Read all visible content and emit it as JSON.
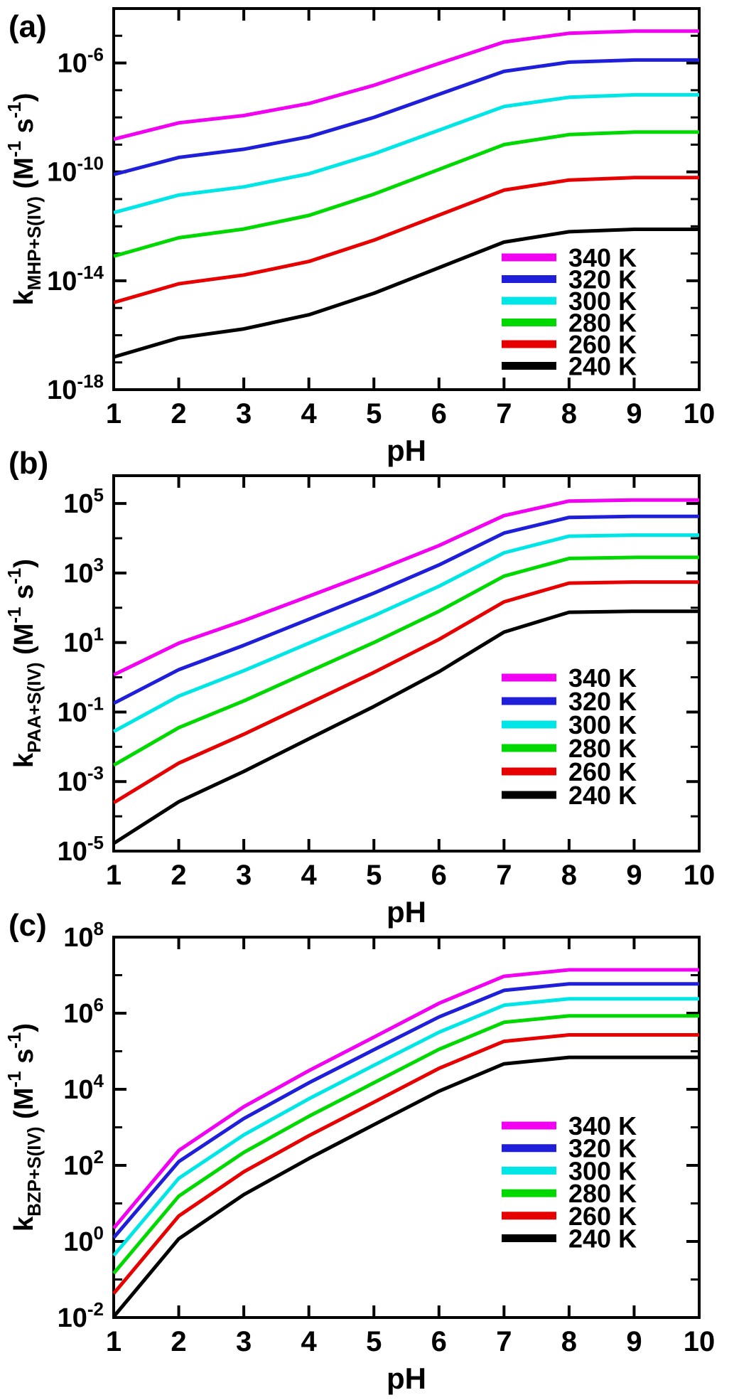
{
  "figure": {
    "background_color": "#ffffff",
    "panel_labels": [
      "(a)",
      "(b)",
      "(c)"
    ],
    "temperatures_K": [
      "340 K",
      "320 K",
      "300 K",
      "280 K",
      "260 K",
      "240 K"
    ],
    "series_colors": [
      "#F200F2",
      "#1F1FD9",
      "#00E6E6",
      "#00D900",
      "#E60000",
      "#000000"
    ]
  },
  "chart_data": [
    {
      "id": "a",
      "panel_label": "(a)",
      "type": "line",
      "xlabel": "pH",
      "x": [
        1,
        2,
        3,
        4,
        5,
        6,
        7,
        8,
        9,
        10
      ],
      "x_tick_labels": [
        "1",
        "2",
        "3",
        "4",
        "5",
        "6",
        "7",
        "8",
        "9",
        "10"
      ],
      "y_axis": {
        "scale": "log10",
        "ylim_log10": [
          -18,
          -4
        ],
        "major_ticks": [
          {
            "base": "10",
            "exp": "-6",
            "log10": -6
          },
          {
            "base": "10",
            "exp": "-10",
            "log10": -10
          },
          {
            "base": "10",
            "exp": "-14",
            "log10": -14
          },
          {
            "base": "10",
            "exp": "-18",
            "log10": -18
          }
        ],
        "title_parts": {
          "k": "k",
          "sub": "MHP+S(IV)",
          "open": " (M",
          "sup1": "-1",
          "mid": " s",
          "sup2": "-1",
          "close": ")"
        }
      },
      "legend_position": "lower-right",
      "grid": false,
      "series": [
        {
          "name": "340 K",
          "color": "#F200F2",
          "log10_k": [
            -8.8,
            -8.2,
            -7.93,
            -7.49,
            -6.82,
            -6.02,
            -5.23,
            -4.91,
            -4.83,
            -4.83
          ]
        },
        {
          "name": "320 K",
          "color": "#1F1FD9",
          "log10_k": [
            -10.1,
            -9.47,
            -9.17,
            -8.71,
            -8.0,
            -7.15,
            -6.31,
            -5.97,
            -5.89,
            -5.89
          ]
        },
        {
          "name": "300 K",
          "color": "#00E6E6",
          "log10_k": [
            -11.5,
            -10.85,
            -10.55,
            -10.07,
            -9.34,
            -8.47,
            -7.6,
            -7.26,
            -7.17,
            -7.17
          ]
        },
        {
          "name": "280 K",
          "color": "#00D900",
          "log10_k": [
            -13.1,
            -12.42,
            -12.1,
            -11.6,
            -10.82,
            -9.91,
            -9.0,
            -8.63,
            -8.54,
            -8.54
          ]
        },
        {
          "name": "260 K",
          "color": "#E60000",
          "log10_k": [
            -14.8,
            -14.11,
            -13.79,
            -13.29,
            -12.51,
            -11.59,
            -10.67,
            -10.3,
            -10.21,
            -10.21
          ]
        },
        {
          "name": "240 K",
          "color": "#000000",
          "log10_k": [
            -16.8,
            -16.1,
            -15.77,
            -15.25,
            -14.46,
            -13.52,
            -12.58,
            -12.2,
            -12.11,
            -12.11
          ]
        }
      ]
    },
    {
      "id": "b",
      "panel_label": "(b)",
      "type": "line",
      "xlabel": "pH",
      "x": [
        1,
        2,
        3,
        4,
        5,
        6,
        7,
        8,
        9,
        10
      ],
      "x_tick_labels": [
        "1",
        "2",
        "3",
        "4",
        "5",
        "6",
        "7",
        "8",
        "9",
        "10"
      ],
      "y_axis": {
        "scale": "log10",
        "ylim_log10": [
          -5,
          5.8
        ],
        "major_ticks": [
          {
            "base": "10",
            "exp": "5",
            "log10": 5
          },
          {
            "base": "10",
            "exp": "3",
            "log10": 3
          },
          {
            "base": "10",
            "exp": "1",
            "log10": 1
          },
          {
            "base": "10",
            "exp": "-1",
            "log10": -1
          },
          {
            "base": "10",
            "exp": "-3",
            "log10": -3
          },
          {
            "base": "10",
            "exp": "-5",
            "log10": -5
          }
        ],
        "title_parts": {
          "k": "k",
          "sub": "PAA+S(IV)",
          "open": " (M",
          "sup1": "-1",
          "mid": " s",
          "sup2": "-1",
          "close": ")"
        }
      },
      "legend_position": "lower-right",
      "grid": false,
      "series": [
        {
          "name": "340 K",
          "color": "#F200F2",
          "log10_k": [
            0.07,
            0.98,
            1.63,
            2.33,
            3.04,
            3.79,
            4.65,
            5.07,
            5.1,
            5.1
          ]
        },
        {
          "name": "320 K",
          "color": "#1F1FD9",
          "log10_k": [
            -0.75,
            0.22,
            0.92,
            1.67,
            2.42,
            3.23,
            4.15,
            4.6,
            4.63,
            4.63
          ]
        },
        {
          "name": "300 K",
          "color": "#00E6E6",
          "log10_k": [
            -1.56,
            -0.54,
            0.19,
            0.98,
            1.77,
            2.62,
            3.58,
            4.06,
            4.09,
            4.09
          ]
        },
        {
          "name": "280 K",
          "color": "#00D900",
          "log10_k": [
            -2.53,
            -1.45,
            -0.68,
            0.16,
            1.0,
            1.9,
            2.91,
            3.42,
            3.45,
            3.45
          ]
        },
        {
          "name": "260 K",
          "color": "#E60000",
          "log10_k": [
            -3.61,
            -2.47,
            -1.64,
            -0.75,
            0.14,
            1.09,
            2.17,
            2.71,
            2.74,
            2.74
          ]
        },
        {
          "name": "240 K",
          "color": "#000000",
          "log10_k": [
            -4.78,
            -3.58,
            -2.71,
            -1.77,
            -0.84,
            0.16,
            1.3,
            1.87,
            1.9,
            1.9
          ]
        }
      ]
    },
    {
      "id": "c",
      "panel_label": "(c)",
      "type": "line",
      "xlabel": "pH",
      "x": [
        1,
        2,
        3,
        4,
        5,
        6,
        7,
        8,
        9,
        10
      ],
      "x_tick_labels": [
        "1",
        "2",
        "3",
        "4",
        "5",
        "6",
        "7",
        "8",
        "9",
        "10"
      ],
      "y_axis": {
        "scale": "log10",
        "ylim_log10": [
          -2,
          8
        ],
        "major_ticks": [
          {
            "base": "10",
            "exp": "8",
            "log10": 8
          },
          {
            "base": "10",
            "exp": "6",
            "log10": 6
          },
          {
            "base": "10",
            "exp": "4",
            "log10": 4
          },
          {
            "base": "10",
            "exp": "2",
            "log10": 2
          },
          {
            "base": "10",
            "exp": "0",
            "log10": 0
          },
          {
            "base": "10",
            "exp": "-2",
            "log10": -2
          }
        ],
        "title_parts": {
          "k": "k",
          "sub": "BZP+S(IV)",
          "open": " (M",
          "sup1": "-1",
          "mid": " s",
          "sup2": "-1",
          "close": ")"
        }
      },
      "legend_position": "lower-right",
      "grid": false,
      "series": [
        {
          "name": "340 K",
          "color": "#F200F2",
          "log10_k": [
            0.35,
            2.39,
            3.54,
            4.49,
            5.37,
            6.26,
            6.97,
            7.14,
            7.14,
            7.14
          ]
        },
        {
          "name": "320 K",
          "color": "#1F1FD9",
          "log10_k": [
            0.1,
            2.1,
            3.23,
            4.17,
            5.04,
            5.9,
            6.6,
            6.77,
            6.77,
            6.77
          ]
        },
        {
          "name": "300 K",
          "color": "#00E6E6",
          "log10_k": [
            -0.37,
            1.66,
            2.8,
            3.75,
            4.63,
            5.5,
            6.21,
            6.38,
            6.38,
            6.38
          ]
        },
        {
          "name": "280 K",
          "color": "#00D900",
          "log10_k": [
            -0.84,
            1.19,
            2.34,
            3.29,
            4.17,
            5.05,
            5.76,
            5.93,
            5.93,
            5.93
          ]
        },
        {
          "name": "260 K",
          "color": "#E60000",
          "log10_k": [
            -1.37,
            0.67,
            1.83,
            2.78,
            3.66,
            4.55,
            5.26,
            5.43,
            5.43,
            5.43
          ]
        },
        {
          "name": "240 K",
          "color": "#000000",
          "log10_k": [
            -1.98,
            0.07,
            1.23,
            2.18,
            3.07,
            3.95,
            4.67,
            4.84,
            4.84,
            4.84
          ]
        }
      ]
    }
  ]
}
